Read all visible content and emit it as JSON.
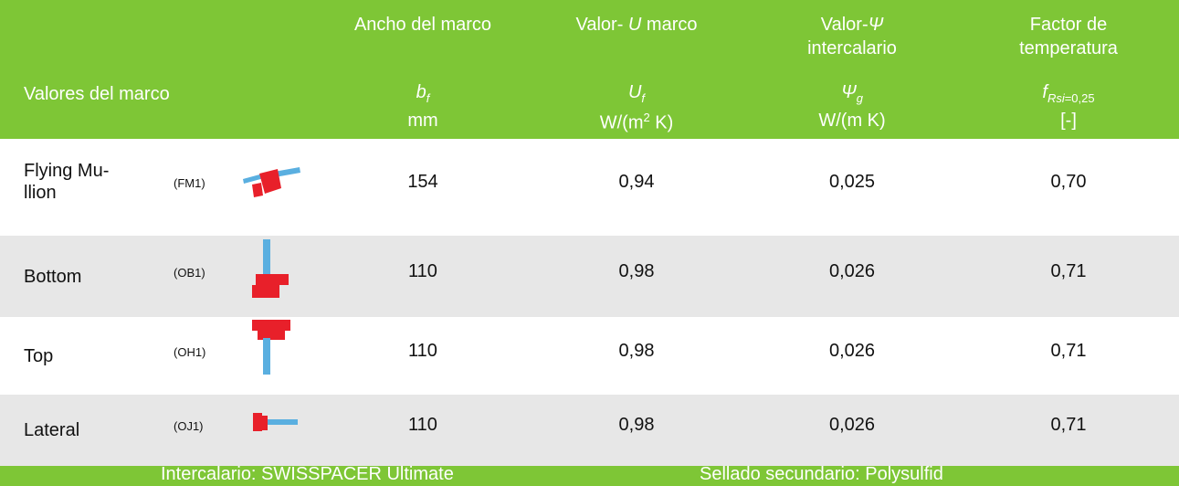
{
  "header": {
    "row_label": "Valores del marco",
    "columns": [
      {
        "lines": [
          [
            "Ancho del marco"
          ]
        ],
        "symbol": {
          "main": "b",
          "sub": "f"
        },
        "unit": [
          "mm"
        ]
      },
      {
        "lines": [
          [
            "Valor- ",
            "U",
            " marco"
          ]
        ],
        "symbol": {
          "main": "U",
          "sub": "f"
        },
        "unit": [
          "W/(m",
          "2",
          " K)"
        ]
      },
      {
        "lines": [
          [
            "Valor-",
            "Ψ"
          ],
          [
            "intercalario"
          ]
        ],
        "symbol": {
          "main": "Ψ",
          "sub": "g"
        },
        "unit": [
          "W/(m K)"
        ]
      },
      {
        "lines": [
          [
            "Factor de"
          ],
          [
            "temperatura"
          ]
        ],
        "symbol": {
          "main": "f",
          "sub": "Rsi",
          "sub2": "=0,25"
        },
        "unit": [
          "[-]"
        ]
      }
    ]
  },
  "table": {
    "rows": [
      {
        "name": [
          "Flying Mu-",
          "llion"
        ],
        "code": "(FM1)",
        "cells": [
          "154",
          "0,94",
          "0,025",
          "0,70"
        ]
      },
      {
        "name": [
          "Bottom"
        ],
        "code": "(OB1)",
        "cells": [
          "110",
          "0,98",
          "0,026",
          "0,71"
        ]
      },
      {
        "name": [
          "Top"
        ],
        "code": "(OH1)",
        "cells": [
          "110",
          "0,98",
          "0,026",
          "0,71"
        ]
      },
      {
        "name": [
          "Lateral"
        ],
        "code": "(OJ1)",
        "cells": [
          "110",
          "0,98",
          "0,026",
          "0,71"
        ]
      }
    ]
  },
  "footer": {
    "left": "Intercalario: SWISSPACER Ultimate",
    "right": "Sellado secundario: Polysulfid"
  }
}
